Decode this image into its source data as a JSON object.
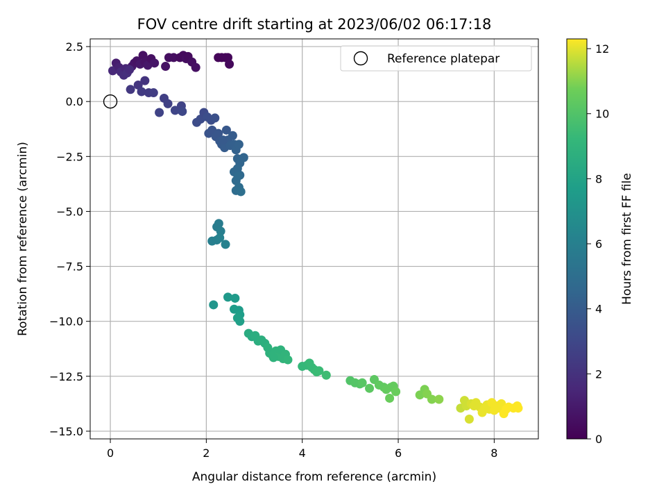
{
  "chart_data": {
    "type": "scatter",
    "title": "FOV centre drift starting at 2023/06/02 06:17:18",
    "xlabel": "Angular distance from reference (arcmin)",
    "ylabel": "Rotation from reference (arcmin)",
    "xlim": [
      -0.42,
      8.92
    ],
    "ylim": [
      -15.35,
      2.85
    ],
    "x_ticks": [
      0,
      2,
      4,
      6,
      8
    ],
    "x_tick_labels": [
      "0",
      "2",
      "4",
      "6",
      "8"
    ],
    "y_ticks": [
      2.5,
      0,
      -2.5,
      -5,
      -7.5,
      -10,
      -12.5,
      -15
    ],
    "y_tick_labels": [
      "2.5",
      "0.0",
      "−2.5",
      "−5.0",
      "−7.5",
      "−10.0",
      "−12.5",
      "−15.0"
    ],
    "grid": true,
    "legend": {
      "position": "top-right",
      "entries": [
        "Reference platepar"
      ]
    },
    "reference_point": {
      "x": 0.0,
      "y": 0.0
    },
    "colorbar": {
      "label": "Hours from first FF file",
      "colormap": "viridis",
      "range": [
        0,
        12.3
      ],
      "ticks": [
        0,
        2,
        4,
        6,
        8,
        10,
        12
      ],
      "tick_labels": [
        "0",
        "2",
        "4",
        "6",
        "8",
        "10",
        "12"
      ]
    },
    "points": [
      {
        "x": 0.05,
        "y": 1.4,
        "h": 1.6
      },
      {
        "x": 0.12,
        "y": 1.75,
        "h": 1.1
      },
      {
        "x": 0.18,
        "y": 1.55,
        "h": 1.3
      },
      {
        "x": 0.22,
        "y": 1.35,
        "h": 1.7
      },
      {
        "x": 0.28,
        "y": 1.2,
        "h": 1.8
      },
      {
        "x": 0.32,
        "y": 1.5,
        "h": 1.5
      },
      {
        "x": 0.45,
        "y": 1.6,
        "h": 1.0
      },
      {
        "x": 0.5,
        "y": 1.75,
        "h": 0.8
      },
      {
        "x": 0.55,
        "y": 1.85,
        "h": 0.7
      },
      {
        "x": 0.62,
        "y": 1.7,
        "h": 0.9
      },
      {
        "x": 0.68,
        "y": 2.1,
        "h": 0.6
      },
      {
        "x": 0.72,
        "y": 1.8,
        "h": 0.7
      },
      {
        "x": 0.78,
        "y": 1.65,
        "h": 0.9
      },
      {
        "x": 0.85,
        "y": 1.95,
        "h": 0.6
      },
      {
        "x": 0.92,
        "y": 1.75,
        "h": 0.8
      },
      {
        "x": 0.35,
        "y": 1.3,
        "h": 1.9
      },
      {
        "x": 0.4,
        "y": 1.45,
        "h": 1.7
      },
      {
        "x": 1.15,
        "y": 1.6,
        "h": 0.7
      },
      {
        "x": 1.22,
        "y": 2.0,
        "h": 0.5
      },
      {
        "x": 1.32,
        "y": 2.0,
        "h": 0.5
      },
      {
        "x": 1.45,
        "y": 2.0,
        "h": 0.4
      },
      {
        "x": 1.52,
        "y": 2.1,
        "h": 0.4
      },
      {
        "x": 1.58,
        "y": 1.95,
        "h": 0.5
      },
      {
        "x": 1.62,
        "y": 2.05,
        "h": 0.4
      },
      {
        "x": 1.7,
        "y": 1.8,
        "h": 0.5
      },
      {
        "x": 1.78,
        "y": 1.55,
        "h": 0.6
      },
      {
        "x": 2.25,
        "y": 2.0,
        "h": 0.2
      },
      {
        "x": 2.32,
        "y": 2.0,
        "h": 0.2
      },
      {
        "x": 2.4,
        "y": 2.0,
        "h": 0.2
      },
      {
        "x": 2.45,
        "y": 2.0,
        "h": 0.2
      },
      {
        "x": 2.48,
        "y": 1.7,
        "h": 0.3
      },
      {
        "x": 0.42,
        "y": 0.55,
        "h": 2.3
      },
      {
        "x": 0.58,
        "y": 0.75,
        "h": 2.2
      },
      {
        "x": 0.65,
        "y": 0.45,
        "h": 2.4
      },
      {
        "x": 0.72,
        "y": 0.95,
        "h": 2.1
      },
      {
        "x": 0.8,
        "y": 0.4,
        "h": 2.4
      },
      {
        "x": 0.9,
        "y": 0.4,
        "h": 2.5
      },
      {
        "x": 1.02,
        "y": -0.5,
        "h": 2.8
      },
      {
        "x": 1.12,
        "y": 0.15,
        "h": 2.6
      },
      {
        "x": 1.2,
        "y": -0.1,
        "h": 2.7
      },
      {
        "x": 1.35,
        "y": -0.4,
        "h": 2.9
      },
      {
        "x": 1.48,
        "y": -0.2,
        "h": 2.8
      },
      {
        "x": 1.5,
        "y": -0.45,
        "h": 3.0
      },
      {
        "x": 1.8,
        "y": -0.95,
        "h": 3.2
      },
      {
        "x": 1.88,
        "y": -0.8,
        "h": 3.2
      },
      {
        "x": 1.95,
        "y": -0.5,
        "h": 3.1
      },
      {
        "x": 2.02,
        "y": -0.7,
        "h": 3.3
      },
      {
        "x": 2.1,
        "y": -0.85,
        "h": 3.3
      },
      {
        "x": 2.18,
        "y": -0.75,
        "h": 3.4
      },
      {
        "x": 2.05,
        "y": -1.45,
        "h": 3.6
      },
      {
        "x": 2.12,
        "y": -1.3,
        "h": 3.6
      },
      {
        "x": 2.2,
        "y": -1.6,
        "h": 3.7
      },
      {
        "x": 2.25,
        "y": -1.45,
        "h": 3.7
      },
      {
        "x": 2.28,
        "y": -1.8,
        "h": 3.8
      },
      {
        "x": 2.32,
        "y": -1.95,
        "h": 3.9
      },
      {
        "x": 2.38,
        "y": -2.1,
        "h": 4.0
      },
      {
        "x": 2.42,
        "y": -1.3,
        "h": 3.8
      },
      {
        "x": 2.45,
        "y": -1.75,
        "h": 4.0
      },
      {
        "x": 2.5,
        "y": -2.0,
        "h": 4.1
      },
      {
        "x": 2.55,
        "y": -1.55,
        "h": 4.0
      },
      {
        "x": 2.58,
        "y": -1.95,
        "h": 4.2
      },
      {
        "x": 2.62,
        "y": -2.2,
        "h": 4.3
      },
      {
        "x": 2.68,
        "y": -1.95,
        "h": 4.3
      },
      {
        "x": 2.35,
        "y": -1.75,
        "h": 3.9
      },
      {
        "x": 2.65,
        "y": -2.6,
        "h": 4.4
      },
      {
        "x": 2.7,
        "y": -2.8,
        "h": 4.5
      },
      {
        "x": 2.78,
        "y": -2.55,
        "h": 4.5
      },
      {
        "x": 2.58,
        "y": -3.2,
        "h": 4.6
      },
      {
        "x": 2.65,
        "y": -3.05,
        "h": 4.6
      },
      {
        "x": 2.7,
        "y": -3.35,
        "h": 4.7
      },
      {
        "x": 2.62,
        "y": -3.6,
        "h": 4.8
      },
      {
        "x": 2.68,
        "y": -3.9,
        "h": 4.9
      },
      {
        "x": 2.62,
        "y": -4.05,
        "h": 4.9
      },
      {
        "x": 2.72,
        "y": -4.1,
        "h": 5.0
      },
      {
        "x": 2.66,
        "y": -3.4,
        "h": 4.8
      },
      {
        "x": 2.22,
        "y": -5.7,
        "h": 5.8
      },
      {
        "x": 2.26,
        "y": -5.55,
        "h": 5.8
      },
      {
        "x": 2.3,
        "y": -5.9,
        "h": 5.9
      },
      {
        "x": 2.12,
        "y": -6.35,
        "h": 6.0
      },
      {
        "x": 2.22,
        "y": -6.3,
        "h": 6.0
      },
      {
        "x": 2.28,
        "y": -6.2,
        "h": 6.1
      },
      {
        "x": 2.4,
        "y": -6.5,
        "h": 6.1
      },
      {
        "x": 2.15,
        "y": -9.25,
        "h": 7.2
      },
      {
        "x": 2.45,
        "y": -8.9,
        "h": 7.4
      },
      {
        "x": 2.6,
        "y": -8.95,
        "h": 7.5
      },
      {
        "x": 2.58,
        "y": -9.45,
        "h": 7.6
      },
      {
        "x": 2.68,
        "y": -9.5,
        "h": 7.6
      },
      {
        "x": 2.7,
        "y": -9.7,
        "h": 7.7
      },
      {
        "x": 2.65,
        "y": -9.85,
        "h": 7.8
      },
      {
        "x": 2.7,
        "y": -10.0,
        "h": 7.8
      },
      {
        "x": 2.88,
        "y": -10.55,
        "h": 8.5
      },
      {
        "x": 2.95,
        "y": -10.7,
        "h": 8.5
      },
      {
        "x": 3.02,
        "y": -10.65,
        "h": 8.6
      },
      {
        "x": 3.08,
        "y": -10.9,
        "h": 8.6
      },
      {
        "x": 3.15,
        "y": -10.85,
        "h": 8.7
      },
      {
        "x": 3.22,
        "y": -11.0,
        "h": 8.7
      },
      {
        "x": 3.28,
        "y": -11.2,
        "h": 8.8
      },
      {
        "x": 3.32,
        "y": -11.45,
        "h": 8.8
      },
      {
        "x": 3.38,
        "y": -11.55,
        "h": 8.9
      },
      {
        "x": 3.45,
        "y": -11.35,
        "h": 8.9
      },
      {
        "x": 3.5,
        "y": -11.6,
        "h": 9.0
      },
      {
        "x": 3.55,
        "y": -11.3,
        "h": 8.9
      },
      {
        "x": 3.6,
        "y": -11.7,
        "h": 9.0
      },
      {
        "x": 3.65,
        "y": -11.5,
        "h": 9.0
      },
      {
        "x": 3.7,
        "y": -11.75,
        "h": 9.1
      },
      {
        "x": 3.4,
        "y": -11.65,
        "h": 8.9
      },
      {
        "x": 4.0,
        "y": -12.05,
        "h": 9.2
      },
      {
        "x": 4.1,
        "y": -12.0,
        "h": 9.2
      },
      {
        "x": 4.15,
        "y": -11.9,
        "h": 9.3
      },
      {
        "x": 4.2,
        "y": -12.1,
        "h": 9.3
      },
      {
        "x": 4.25,
        "y": -12.2,
        "h": 9.3
      },
      {
        "x": 4.3,
        "y": -12.3,
        "h": 9.4
      },
      {
        "x": 4.35,
        "y": -12.25,
        "h": 9.4
      },
      {
        "x": 4.5,
        "y": -12.45,
        "h": 9.5
      },
      {
        "x": 5.0,
        "y": -12.7,
        "h": 10.0
      },
      {
        "x": 5.1,
        "y": -12.8,
        "h": 10.1
      },
      {
        "x": 5.2,
        "y": -12.85,
        "h": 10.1
      },
      {
        "x": 5.25,
        "y": -12.8,
        "h": 10.2
      },
      {
        "x": 5.4,
        "y": -13.05,
        "h": 10.3
      },
      {
        "x": 5.5,
        "y": -12.65,
        "h": 10.3
      },
      {
        "x": 5.6,
        "y": -12.9,
        "h": 10.4
      },
      {
        "x": 5.7,
        "y": -13.0,
        "h": 10.4
      },
      {
        "x": 5.75,
        "y": -13.1,
        "h": 10.5
      },
      {
        "x": 5.85,
        "y": -13.0,
        "h": 10.5
      },
      {
        "x": 5.9,
        "y": -12.95,
        "h": 10.5
      },
      {
        "x": 5.95,
        "y": -13.2,
        "h": 10.6
      },
      {
        "x": 5.82,
        "y": -13.5,
        "h": 10.6
      },
      {
        "x": 6.45,
        "y": -13.35,
        "h": 10.9
      },
      {
        "x": 6.55,
        "y": -13.1,
        "h": 10.9
      },
      {
        "x": 6.6,
        "y": -13.3,
        "h": 11.0
      },
      {
        "x": 6.7,
        "y": -13.55,
        "h": 11.0
      },
      {
        "x": 6.85,
        "y": -13.55,
        "h": 11.1
      },
      {
        "x": 7.3,
        "y": -13.95,
        "h": 11.7
      },
      {
        "x": 7.38,
        "y": -13.6,
        "h": 11.8
      },
      {
        "x": 7.42,
        "y": -13.85,
        "h": 11.8
      },
      {
        "x": 7.48,
        "y": -14.45,
        "h": 11.9
      },
      {
        "x": 7.52,
        "y": -13.75,
        "h": 11.9
      },
      {
        "x": 7.58,
        "y": -13.85,
        "h": 12.0
      },
      {
        "x": 7.62,
        "y": -13.7,
        "h": 12.0
      },
      {
        "x": 7.7,
        "y": -13.9,
        "h": 12.0
      },
      {
        "x": 7.75,
        "y": -14.15,
        "h": 12.1
      },
      {
        "x": 7.8,
        "y": -13.95,
        "h": 12.1
      },
      {
        "x": 7.85,
        "y": -13.8,
        "h": 12.1
      },
      {
        "x": 7.9,
        "y": -14.0,
        "h": 12.1
      },
      {
        "x": 7.95,
        "y": -13.7,
        "h": 12.2
      },
      {
        "x": 8.0,
        "y": -14.05,
        "h": 12.2
      },
      {
        "x": 8.05,
        "y": -13.85,
        "h": 12.2
      },
      {
        "x": 8.1,
        "y": -13.95,
        "h": 12.2
      },
      {
        "x": 8.15,
        "y": -13.75,
        "h": 12.2
      },
      {
        "x": 8.2,
        "y": -14.2,
        "h": 12.3
      },
      {
        "x": 8.25,
        "y": -14.0,
        "h": 12.3
      },
      {
        "x": 8.3,
        "y": -13.9,
        "h": 12.3
      },
      {
        "x": 8.4,
        "y": -13.95,
        "h": 12.3
      },
      {
        "x": 8.48,
        "y": -13.85,
        "h": 12.3
      },
      {
        "x": 8.5,
        "y": -13.95,
        "h": 12.3
      }
    ]
  }
}
